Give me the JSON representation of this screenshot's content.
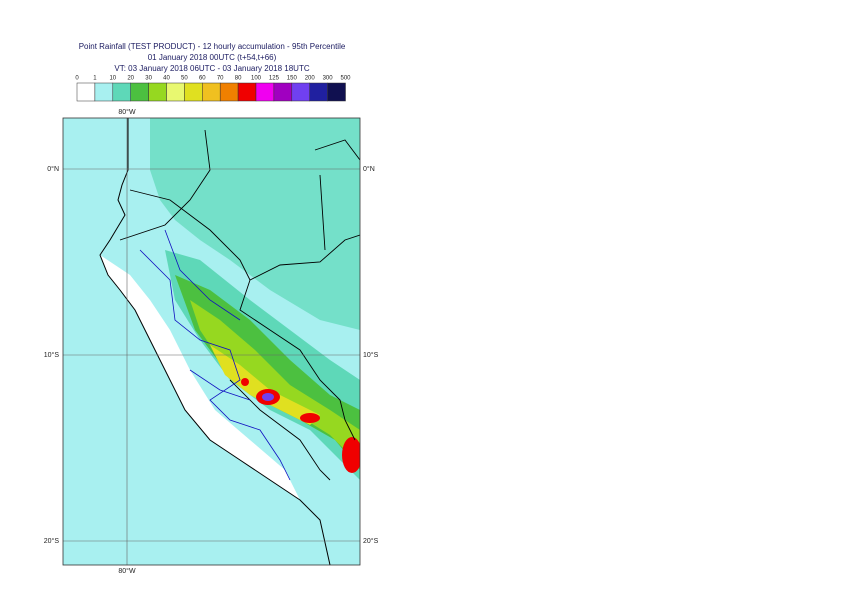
{
  "header": {
    "lines": [
      "Point Rainfall (TEST PRODUCT) - 12 hourly accumulation - 95th Percentile",
      "01 January 2018 00UTC (t+54,t+66)",
      "VT: 03 January 2018 06UTC - 03 January 2018 18UTC"
    ]
  },
  "legend": {
    "labels": [
      0,
      1,
      10,
      20,
      30,
      40,
      50,
      60,
      70,
      80,
      100,
      125,
      150,
      200,
      300,
      500
    ],
    "colors": [
      "#ffffff",
      "#a8f0f0",
      "#5ed8b8",
      "#4cc040",
      "#96d820",
      "#e8f870",
      "#e0e020",
      "#f0c020",
      "#f08000",
      "#f00000",
      "#f000f0",
      "#a000c0",
      "#7040f0",
      "#2020a0",
      "#101050"
    ]
  },
  "axes": {
    "lon_top": "80°W",
    "lon_bottom": "80°W",
    "lat_left": [
      "0°N",
      "10°S",
      "20°S"
    ],
    "lat_right": [
      "0°N",
      "10°S",
      "20°S"
    ]
  }
}
